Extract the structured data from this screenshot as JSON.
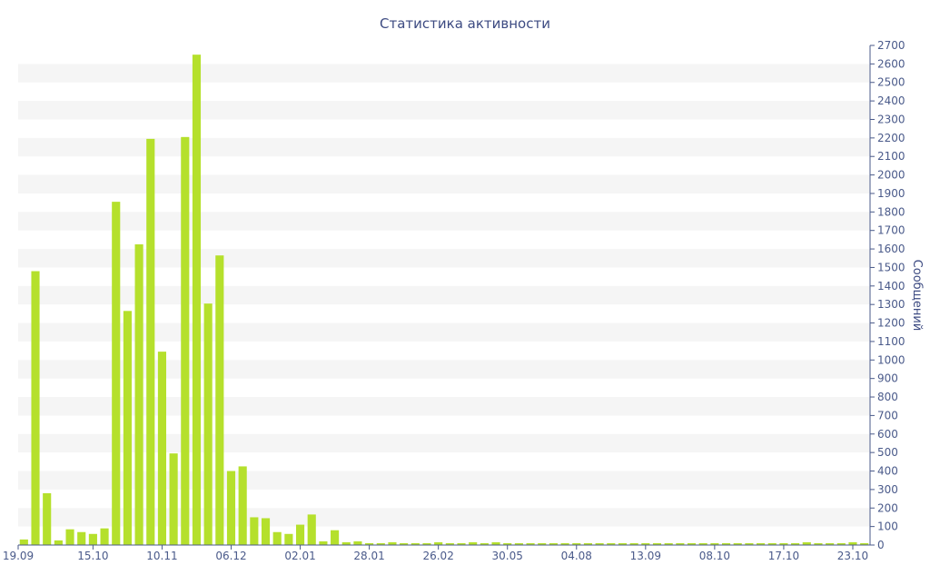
{
  "chart_data": {
    "type": "bar",
    "title": "Статистика активности",
    "xlabel": "",
    "ylabel": "Сообщений",
    "ylim": [
      0,
      2700
    ],
    "ytick_step": 100,
    "y_axis_position": "right",
    "grid": "horizontal alternating bands",
    "legend": "none",
    "bar_color": "#b5e02c",
    "axis_color": "#4a5a8a",
    "band_color": "#f5f5f5",
    "x_tick_labels": [
      "19.09",
      "15.10",
      "10.11",
      "06.12",
      "02.01",
      "28.01",
      "26.02",
      "30.05",
      "04.08",
      "13.09",
      "08.10",
      "17.10",
      "23.10"
    ],
    "x_tick_positions": [
      0,
      6.5,
      12.5,
      18.5,
      24.5,
      30.5,
      36.5,
      42.5,
      48.5,
      54.5,
      60.5,
      66.5,
      72.5
    ],
    "values": [
      30,
      1480,
      280,
      25,
      85,
      70,
      60,
      90,
      1855,
      1265,
      1625,
      2195,
      1045,
      495,
      2205,
      2650,
      1305,
      1565,
      400,
      425,
      150,
      145,
      70,
      60,
      110,
      165,
      20,
      80,
      15,
      20,
      10,
      10,
      15,
      10,
      10,
      10,
      15,
      10,
      10,
      15,
      10,
      15,
      10,
      10,
      10,
      10,
      10,
      10,
      10,
      10,
      10,
      10,
      10,
      10,
      10,
      10,
      10,
      10,
      10,
      10,
      10,
      10,
      10,
      10,
      10,
      10,
      10,
      10,
      15,
      10,
      10,
      10,
      15,
      10
    ]
  }
}
